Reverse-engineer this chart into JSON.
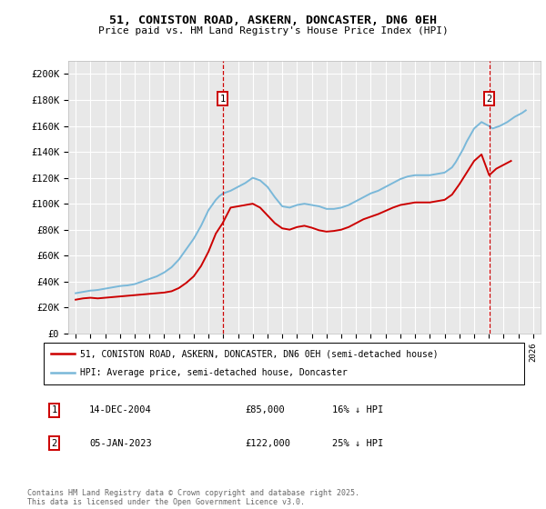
{
  "title": "51, CONISTON ROAD, ASKERN, DONCASTER, DN6 0EH",
  "subtitle": "Price paid vs. HM Land Registry's House Price Index (HPI)",
  "ylabel_ticks": [
    0,
    20000,
    40000,
    60000,
    80000,
    100000,
    120000,
    140000,
    160000,
    180000,
    200000
  ],
  "ytick_labels": [
    "£0",
    "£20K",
    "£40K",
    "£60K",
    "£80K",
    "£100K",
    "£120K",
    "£140K",
    "£160K",
    "£180K",
    "£200K"
  ],
  "xlim": [
    1994.5,
    2026.5
  ],
  "ylim": [
    0,
    210000
  ],
  "hpi_color": "#7ab8d9",
  "price_color": "#cc0000",
  "background_color": "#e8e8e8",
  "grid_color": "#ffffff",
  "marker1_x": 2004.96,
  "marker1_label": "1",
  "marker1_date": "14-DEC-2004",
  "marker1_price": "£85,000",
  "marker1_hpi": "16% ↓ HPI",
  "marker2_x": 2023.02,
  "marker2_label": "2",
  "marker2_date": "05-JAN-2023",
  "marker2_price": "£122,000",
  "marker2_hpi": "25% ↓ HPI",
  "legend_line1": "51, CONISTON ROAD, ASKERN, DONCASTER, DN6 0EH (semi-detached house)",
  "legend_line2": "HPI: Average price, semi-detached house, Doncaster",
  "footer": "Contains HM Land Registry data © Crown copyright and database right 2025.\nThis data is licensed under the Open Government Licence v3.0.",
  "hpi_years": [
    1995.0,
    1995.25,
    1995.5,
    1995.75,
    1996.0,
    1996.25,
    1996.5,
    1996.75,
    1997.0,
    1997.25,
    1997.5,
    1997.75,
    1998.0,
    1998.25,
    1998.5,
    1998.75,
    1999.0,
    1999.25,
    1999.5,
    1999.75,
    2000.0,
    2000.25,
    2000.5,
    2000.75,
    2001.0,
    2001.25,
    2001.5,
    2001.75,
    2002.0,
    2002.25,
    2002.5,
    2002.75,
    2003.0,
    2003.25,
    2003.5,
    2003.75,
    2004.0,
    2004.25,
    2004.5,
    2004.75,
    2005.0,
    2005.25,
    2005.5,
    2005.75,
    2006.0,
    2006.25,
    2006.5,
    2006.75,
    2007.0,
    2007.25,
    2007.5,
    2007.75,
    2008.0,
    2008.25,
    2008.5,
    2008.75,
    2009.0,
    2009.25,
    2009.5,
    2009.75,
    2010.0,
    2010.25,
    2010.5,
    2010.75,
    2011.0,
    2011.25,
    2011.5,
    2011.75,
    2012.0,
    2012.25,
    2012.5,
    2012.75,
    2013.0,
    2013.25,
    2013.5,
    2013.75,
    2014.0,
    2014.25,
    2014.5,
    2014.75,
    2015.0,
    2015.25,
    2015.5,
    2015.75,
    2016.0,
    2016.25,
    2016.5,
    2016.75,
    2017.0,
    2017.25,
    2017.5,
    2017.75,
    2018.0,
    2018.25,
    2018.5,
    2018.75,
    2019.0,
    2019.25,
    2019.5,
    2019.75,
    2020.0,
    2020.25,
    2020.5,
    2020.75,
    2021.0,
    2021.25,
    2021.5,
    2021.75,
    2022.0,
    2022.25,
    2022.5,
    2022.75,
    2023.0,
    2023.25,
    2023.5,
    2023.75,
    2024.0,
    2024.25,
    2024.5,
    2024.75,
    2025.0,
    2025.25,
    2025.5
  ],
  "hpi_values": [
    31000,
    31500,
    32000,
    32500,
    33000,
    33200,
    33500,
    34000,
    34500,
    35000,
    35500,
    36000,
    36500,
    36800,
    37000,
    37500,
    38000,
    39000,
    40000,
    41000,
    42000,
    43000,
    44000,
    45500,
    47000,
    49000,
    51000,
    54000,
    57000,
    61000,
    65000,
    69000,
    73000,
    78000,
    83000,
    89000,
    95000,
    99000,
    103000,
    106000,
    108000,
    109000,
    110000,
    111500,
    113000,
    114500,
    116000,
    118000,
    120000,
    119000,
    118000,
    115500,
    113000,
    109000,
    105000,
    101500,
    98000,
    97500,
    97000,
    98000,
    99000,
    99500,
    100000,
    99500,
    99000,
    98500,
    98000,
    97000,
    96000,
    96000,
    96000,
    96500,
    97000,
    98000,
    99000,
    100500,
    102000,
    103500,
    105000,
    106500,
    108000,
    109000,
    110000,
    111500,
    113000,
    114500,
    116000,
    117500,
    119000,
    120000,
    121000,
    121500,
    122000,
    122000,
    122000,
    122000,
    122000,
    122500,
    123000,
    123500,
    124000,
    126000,
    128000,
    132000,
    137000,
    142000,
    148000,
    153000,
    158000,
    160500,
    163000,
    161500,
    160000,
    158000,
    159000,
    160000,
    161500,
    163000,
    165000,
    167000,
    168500,
    170000,
    172000
  ],
  "price_years": [
    1995.0,
    1995.5,
    1996.0,
    1996.5,
    1997.0,
    1997.5,
    1998.0,
    1998.5,
    1999.0,
    1999.5,
    2000.0,
    2000.5,
    2001.0,
    2001.5,
    2002.0,
    2002.5,
    2003.0,
    2003.5,
    2004.0,
    2004.5,
    2004.96,
    2005.5,
    2006.0,
    2006.5,
    2007.0,
    2007.5,
    2008.0,
    2008.5,
    2009.0,
    2009.5,
    2010.0,
    2010.5,
    2011.0,
    2011.5,
    2012.0,
    2012.5,
    2013.0,
    2013.5,
    2014.0,
    2014.5,
    2015.0,
    2015.5,
    2016.0,
    2016.5,
    2017.0,
    2017.5,
    2018.0,
    2018.5,
    2019.0,
    2019.5,
    2020.0,
    2020.5,
    2021.0,
    2021.5,
    2022.0,
    2022.5,
    2023.02,
    2023.5,
    2024.0,
    2024.5
  ],
  "price_values": [
    26000,
    27000,
    27500,
    27000,
    27500,
    28000,
    28500,
    29000,
    29500,
    30000,
    30500,
    31000,
    31500,
    32500,
    35000,
    39000,
    44000,
    52000,
    63000,
    77000,
    85000,
    97000,
    98000,
    99000,
    100000,
    97000,
    91000,
    85000,
    81000,
    80000,
    82000,
    83000,
    81500,
    79500,
    78500,
    79000,
    80000,
    82000,
    85000,
    88000,
    90000,
    92000,
    94500,
    97000,
    99000,
    100000,
    101000,
    101000,
    101000,
    102000,
    103000,
    107000,
    115000,
    124000,
    133000,
    138000,
    122000,
    127000,
    130000,
    133000
  ]
}
